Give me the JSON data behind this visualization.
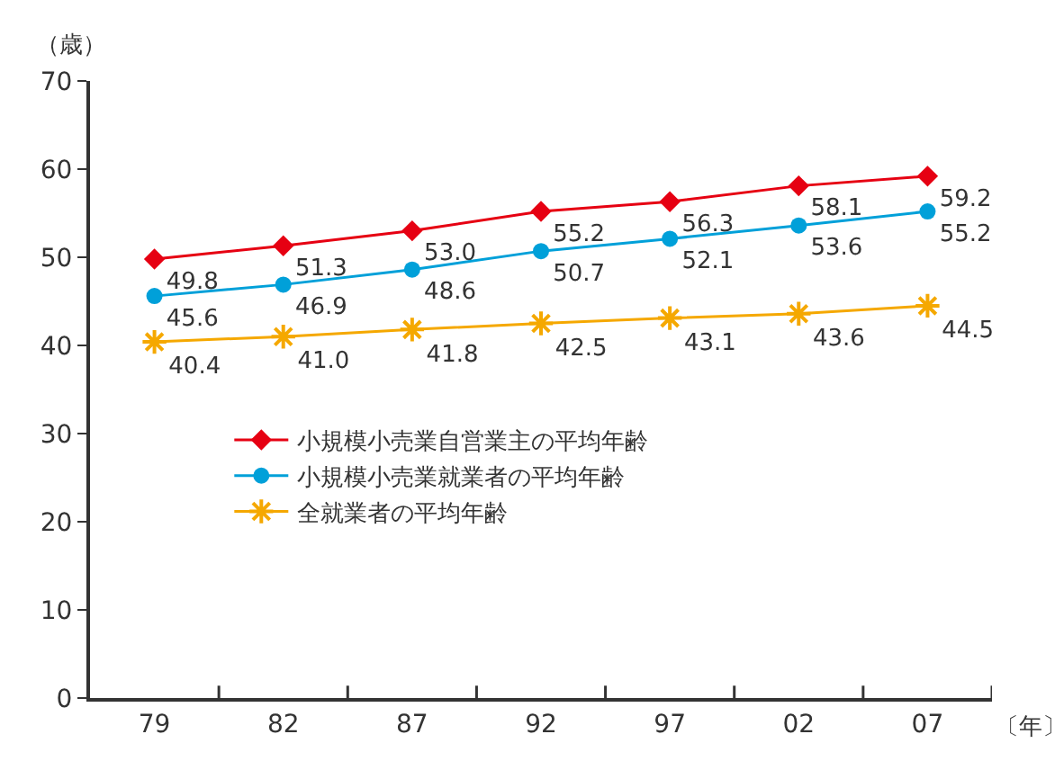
{
  "chart_data": {
    "type": "line",
    "ylabel": "（歳）",
    "xlabel": "〔年〕",
    "categories": [
      "79",
      "82",
      "87",
      "92",
      "97",
      "02",
      "07"
    ],
    "series": [
      {
        "name": "小規模小売業自営業主の平均年齢",
        "color": "#e60012",
        "marker": "diamond",
        "values": [
          49.8,
          51.3,
          53.0,
          55.2,
          56.3,
          58.1,
          59.2
        ],
        "value_labels": [
          "49.8",
          "51.3",
          "53.0",
          "55.2",
          "56.3",
          "58.1",
          "59.2"
        ]
      },
      {
        "name": "小規模小売業就業者の平均年齢",
        "color": "#00a0d9",
        "marker": "circle",
        "values": [
          45.6,
          46.9,
          48.6,
          50.7,
          52.1,
          53.6,
          55.2
        ],
        "value_labels": [
          "45.6",
          "46.9",
          "48.6",
          "50.7",
          "52.1",
          "53.6",
          "55.2"
        ]
      },
      {
        "name": "全就業者の平均年齢",
        "color": "#f5a800",
        "marker": "cross",
        "values": [
          40.4,
          41.0,
          41.8,
          42.5,
          43.1,
          43.6,
          44.5
        ],
        "value_labels": [
          "40.4",
          "41.0",
          "41.8",
          "42.5",
          "43.1",
          "43.6",
          "44.5"
        ]
      }
    ],
    "ylim": [
      0,
      70
    ],
    "yticks": [
      0,
      10,
      20,
      30,
      40,
      50,
      60,
      70
    ],
    "legend": "left",
    "line_style": "solid"
  }
}
